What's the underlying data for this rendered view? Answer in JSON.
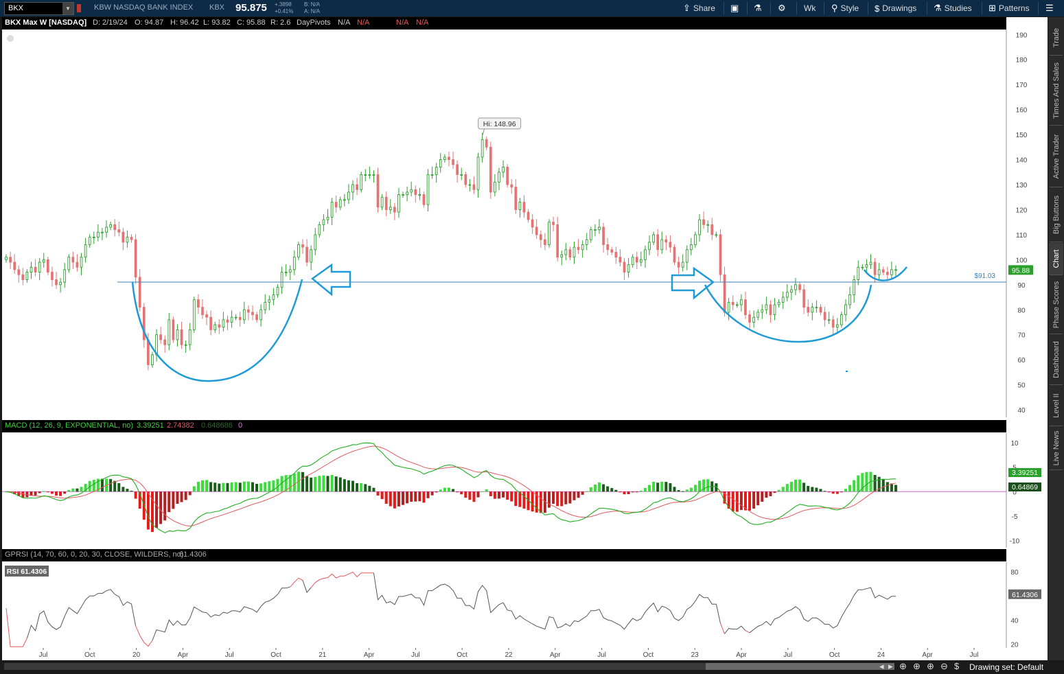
{
  "toolbar": {
    "symbol": "BKX",
    "name": "KBW NASDAQ BANK INDEX",
    "exchange": "KBX",
    "price": "95.875",
    "change": "+.3898",
    "change_pct": "+0.41%",
    "bid": "B: N/A",
    "ask": "A: N/A",
    "share": "Share",
    "period": "Wk",
    "style": "Style",
    "drawings": "Drawings",
    "studies": "Studies",
    "patterns": "Patterns"
  },
  "header": {
    "title": "BKX Max W [NASDAQ]",
    "date": "D: 2/19/24",
    "open": "O: 94.87",
    "high": "H: 96.42",
    "low": "L: 93.82",
    "close": "C: 95.88",
    "range": "R: 2.6",
    "pivots": "DayPivots",
    "na": "N/A"
  },
  "sidebar": {
    "tabs": [
      "Trade",
      "Times And Sales",
      "Active Trader",
      "Big Buttons",
      "Chart",
      "Phase Scores",
      "Dashboard",
      "Level II",
      "Live News"
    ]
  },
  "bottom": {
    "drawing_set": "Drawing set: Default"
  },
  "colors": {
    "up": "#2ca02c",
    "down": "#e57373",
    "drawing": "#1e9bd7",
    "support": "#3b7fb8",
    "macd": "#1fae1f",
    "signal": "#e4585f"
  },
  "chart_data": [
    {
      "type": "candlestick",
      "title": "BKX Max W [NASDAQ]",
      "ylim": [
        37,
        192
      ],
      "yticks": [
        40,
        50,
        60,
        70,
        80,
        90,
        100,
        110,
        120,
        130,
        140,
        150,
        160,
        170,
        180,
        190
      ],
      "xaxis_labels": [
        "Jul",
        "Oct",
        "20",
        "Apr",
        "Jul",
        "Oct",
        "21",
        "Apr",
        "Jul",
        "Oct",
        "22",
        "Apr",
        "Jul",
        "Oct",
        "23",
        "Apr",
        "Jul",
        "Oct",
        "24",
        "Apr",
        "Jul"
      ],
      "closes": [
        101,
        99,
        96,
        94,
        92,
        95,
        97,
        95,
        99,
        100,
        95,
        92,
        90,
        91,
        96,
        101,
        99,
        97,
        101,
        106,
        109,
        109,
        111,
        111,
        113,
        114,
        112,
        111,
        107,
        109,
        108,
        93,
        81,
        68,
        58,
        62,
        70,
        68,
        66,
        76,
        68,
        72,
        66,
        66,
        72,
        84,
        81,
        78,
        77,
        72,
        74,
        73,
        76,
        75,
        77,
        77,
        76,
        80,
        79,
        78,
        76,
        80,
        83,
        84,
        86,
        89,
        95,
        95,
        96,
        101,
        106,
        105,
        99,
        104,
        110,
        114,
        116,
        117,
        123,
        121,
        124,
        124,
        127,
        130,
        128,
        134,
        134,
        134,
        134,
        121,
        125,
        120,
        121,
        119,
        126,
        126,
        127,
        128,
        126,
        126,
        122,
        134,
        134,
        137,
        140,
        141,
        140,
        138,
        134,
        134,
        130,
        130,
        128,
        141,
        148,
        145,
        127,
        131,
        135,
        137,
        130,
        129,
        120,
        123,
        119,
        116,
        113,
        110,
        108,
        106,
        115,
        114,
        101,
        102,
        104,
        101,
        105,
        104,
        106,
        108,
        112,
        112,
        113,
        106,
        104,
        103,
        101,
        99,
        95,
        98,
        101,
        99,
        100,
        104,
        107,
        110,
        104,
        108,
        107,
        105,
        99,
        97,
        99,
        104,
        106,
        110,
        116,
        114,
        114,
        110,
        110,
        94,
        79,
        83,
        82,
        82,
        84,
        78,
        75,
        77,
        79,
        80,
        82,
        78,
        82,
        83,
        85,
        87,
        88,
        90,
        88,
        81,
        79,
        81,
        81,
        79,
        76,
        76,
        73,
        74,
        78,
        82,
        86,
        92,
        97,
        97,
        98,
        99,
        94,
        96,
        95,
        94,
        96,
        96
      ],
      "annotations": {
        "hi_label": "Hi: 148.96",
        "hi_value": 148.96,
        "support_label": "$91.03",
        "support_value": 91.03,
        "last_value": "95.88"
      }
    },
    {
      "type": "line",
      "title": "MACD (12, 26, 9, EXPONENTIAL, no)",
      "series_values": [
        "3.39251",
        "2.74382",
        "0.648686",
        "0"
      ],
      "ylim": [
        -11.5,
        12
      ],
      "yticks": [
        10,
        5,
        0,
        -5,
        -10
      ],
      "last_macd": "3.39251",
      "last_hist": "0.64869"
    },
    {
      "type": "line",
      "title": "GPRSI (14, 70, 60, 0, 20, 30, CLOSE, WILDERS, no)",
      "value": "61.4306",
      "badge": "RSI 61.4306",
      "ylim": [
        17,
        88
      ],
      "yticks": [
        80,
        60,
        40,
        20
      ],
      "last_value": "61.4306"
    }
  ]
}
